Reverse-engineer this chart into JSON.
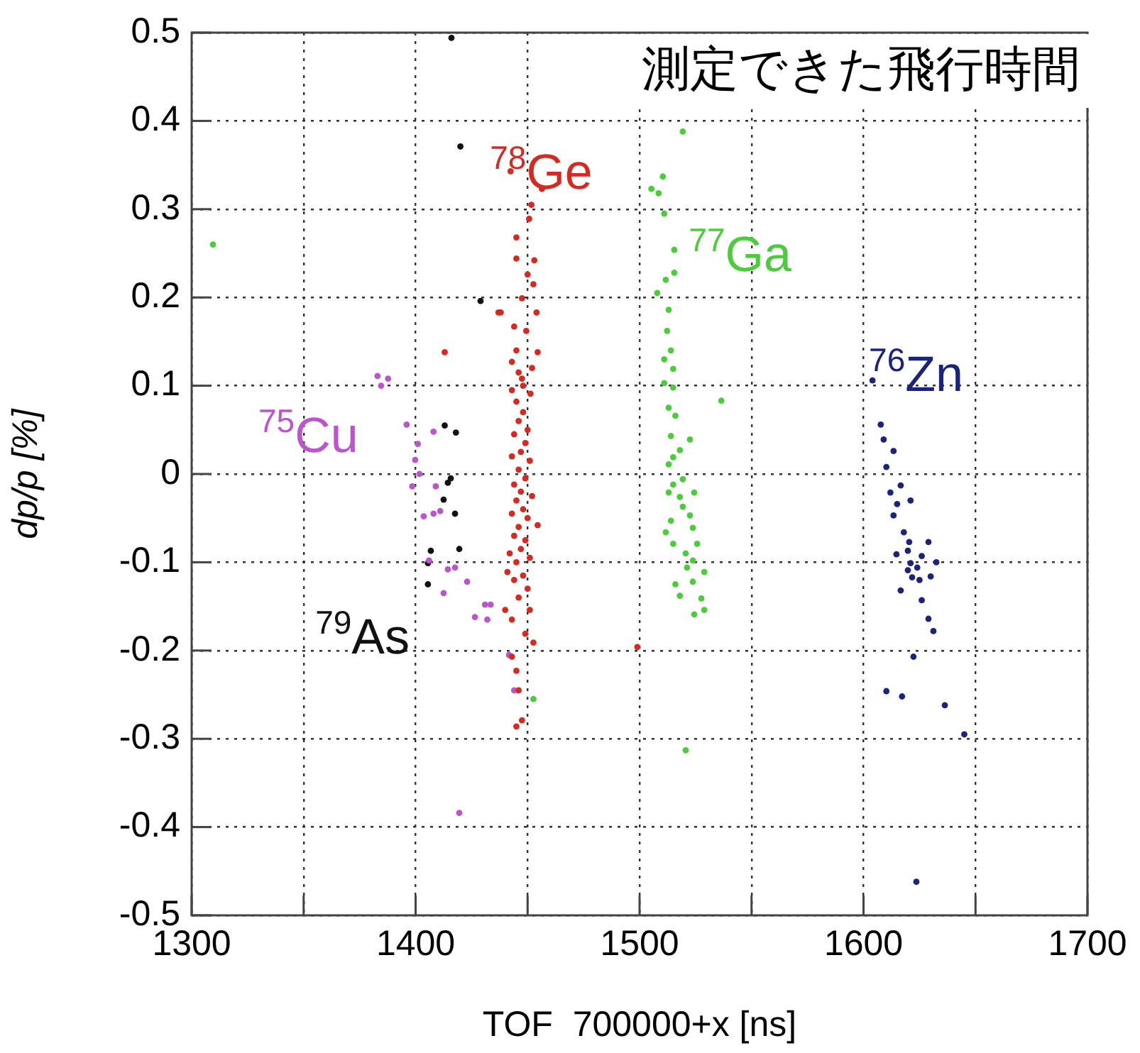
{
  "chart_data": {
    "type": "scatter",
    "title": "測定できた飛行時間",
    "xlabel": "TOF  700000+x [ns]",
    "ylabel": "dp/p [%]",
    "xlim": [
      1300,
      1700
    ],
    "xticks": [
      1300,
      {
        "value": 1350,
        "label": null
      },
      1400,
      {
        "value": 1450,
        "label": null
      },
      1500,
      {
        "value": 1550,
        "label": null
      },
      1600,
      {
        "value": 1650,
        "label": null
      },
      1700
    ],
    "ylim": [
      -0.5,
      0.5
    ],
    "yticks": [
      -0.5,
      -0.4,
      -0.3,
      -0.2,
      -0.1,
      0,
      0.1,
      0.2,
      0.3,
      0.4,
      0.5
    ],
    "grid": true,
    "legend": false,
    "marker": "circle",
    "series": [
      {
        "name": "$^{78}$Ge",
        "color": "#d42a22",
        "x": [
          1451.7,
          1450.7,
          1445,
          1453,
          1445,
          1450,
          1452.6,
          1447.5,
          1438,
          1454,
          1444,
          1449.4,
          1445,
          1443,
          1454.5,
          1447.5,
          1451.3,
          1445,
          1442.4,
          1456.4,
          1413,
          1437,
          1448,
          1446,
          1450,
          1444,
          1449,
          1447,
          1443,
          1451,
          1446,
          1449,
          1444,
          1447,
          1452,
          1445,
          1448,
          1443,
          1450,
          1446,
          1454.5,
          1444,
          1449,
          1447,
          1442,
          1451,
          1445,
          1441,
          1448,
          1444,
          1450,
          1446,
          1451,
          1440,
          1443,
          1449,
          1452.6,
          1443,
          1445,
          1446,
          1447.5,
          1445,
          1499,
          1448,
          1446,
          1452,
          1443
        ],
        "values": [
          0.305,
          0.289,
          0.268,
          0.242,
          0.244,
          0.226,
          0.215,
          0.199,
          0.183,
          0.183,
          0.167,
          0.162,
          0.14,
          0.127,
          0.138,
          0.108,
          0.091,
          0.082,
          0.343,
          0.323,
          0.138,
          0.183,
          0.07,
          0.06,
          0.05,
          0.045,
          0.035,
          0.025,
          0.02,
          0.015,
          0.005,
          -0.005,
          -0.012,
          -0.02,
          -0.025,
          -0.03,
          -0.04,
          -0.045,
          -0.05,
          -0.06,
          -0.058,
          -0.07,
          -0.075,
          -0.085,
          -0.09,
          -0.095,
          -0.1,
          -0.111,
          -0.115,
          -0.12,
          -0.13,
          -0.14,
          -0.154,
          -0.154,
          -0.165,
          -0.181,
          -0.191,
          -0.207,
          -0.223,
          -0.245,
          -0.279,
          -0.286,
          -0.196,
          0.1,
          0.115,
          0.12,
          0.095
        ]
      },
      {
        "name": "$^{77}$Ga",
        "color": "#4ccc3c",
        "x": [
          1519.3,
          1510.4,
          1505.3,
          1508.5,
          1511,
          1515.5,
          1511.7,
          1515.5,
          1507.9,
          1513,
          1512.3,
          1514,
          1511,
          1515,
          1511,
          1515,
          1536.5,
          1513,
          1516,
          1514,
          1522.5,
          1518,
          1513,
          1519.3,
          1515,
          1524.4,
          1519.3,
          1522.5,
          1511.7,
          1515,
          1518,
          1513,
          1514,
          1523.8,
          1515,
          1525.7,
          1520.6,
          1523.8,
          1521.2,
          1528.9,
          1516,
          1523.8,
          1518,
          1527.6,
          1528.9,
          1524.4,
          1520.6,
          1452.6,
          1309.5
        ],
        "values": [
          0.388,
          0.337,
          0.323,
          0.318,
          0.295,
          0.254,
          0.22,
          0.228,
          0.205,
          0.186,
          0.162,
          0.14,
          0.13,
          0.119,
          0.103,
          0.098,
          0.083,
          0.075,
          0.066,
          0.043,
          0.039,
          0.027,
          0.011,
          -0.006,
          0.019,
          -0.021,
          -0.037,
          -0.047,
          -0.066,
          -0.012,
          -0.026,
          -0.021,
          -0.053,
          -0.061,
          -0.079,
          -0.079,
          -0.09,
          -0.098,
          -0.106,
          -0.111,
          -0.125,
          -0.122,
          -0.138,
          -0.141,
          -0.154,
          -0.159,
          -0.313,
          -0.255,
          0.26
        ]
      },
      {
        "name": "$^{76}$Zn",
        "color": "#1c237a",
        "x": [
          1604,
          1607.7,
          1609,
          1613.4,
          1610.2,
          1616.6,
          1612,
          1621,
          1615,
          1613.4,
          1618,
          1620.4,
          1629,
          1614.7,
          1619.8,
          1626,
          1621,
          1632.5,
          1624,
          1619.8,
          1621.7,
          1625,
          1630,
          1616.6,
          1626,
          1629,
          1631.2,
          1622.3,
          1610.2,
          1617.2,
          1636.3,
          1645,
          1623.6
        ],
        "values": [
          0.106,
          0.056,
          0.039,
          0.026,
          0.008,
          -0.013,
          -0.021,
          -0.03,
          -0.034,
          -0.047,
          -0.066,
          -0.077,
          -0.077,
          -0.091,
          -0.087,
          -0.093,
          -0.101,
          -0.1,
          -0.106,
          -0.109,
          -0.117,
          -0.12,
          -0.116,
          -0.132,
          -0.143,
          -0.164,
          -0.178,
          -0.207,
          -0.246,
          -0.252,
          -0.262,
          -0.295,
          -0.462
        ]
      },
      {
        "name": "$^{75}$Cu",
        "color": "#bb55cc",
        "x": [
          1383,
          1387.7,
          1384.6,
          1396,
          1401,
          1408,
          1399.8,
          1401.7,
          1398.5,
          1409,
          1403.6,
          1408,
          1411,
          1406,
          1414.4,
          1417.6,
          1423,
          1412.5,
          1426.5,
          1431,
          1433.5,
          1432,
          1419.5,
          1441.7,
          1444
        ],
        "values": [
          0.111,
          0.108,
          0.1,
          0.056,
          0.034,
          0.048,
          0.016,
          0,
          -0.014,
          -0.014,
          -0.048,
          -0.045,
          -0.042,
          -0.098,
          -0.108,
          -0.106,
          -0.122,
          -0.135,
          -0.162,
          -0.148,
          -0.148,
          -0.165,
          -0.384,
          -0.205,
          -0.245
        ]
      },
      {
        "name": "$^{79}$As",
        "color": "#111111",
        "x": [
          1416,
          1420,
          1429,
          1413,
          1418,
          1415.7,
          1414.4,
          1412.5,
          1417.6,
          1406.8,
          1405.5,
          1405.5,
          1419.5
        ],
        "values": [
          0.494,
          0.371,
          0.196,
          0.055,
          0.047,
          -0.005,
          -0.01,
          -0.029,
          -0.045,
          -0.087,
          -0.101,
          -0.125,
          -0.085
        ]
      }
    ]
  }
}
